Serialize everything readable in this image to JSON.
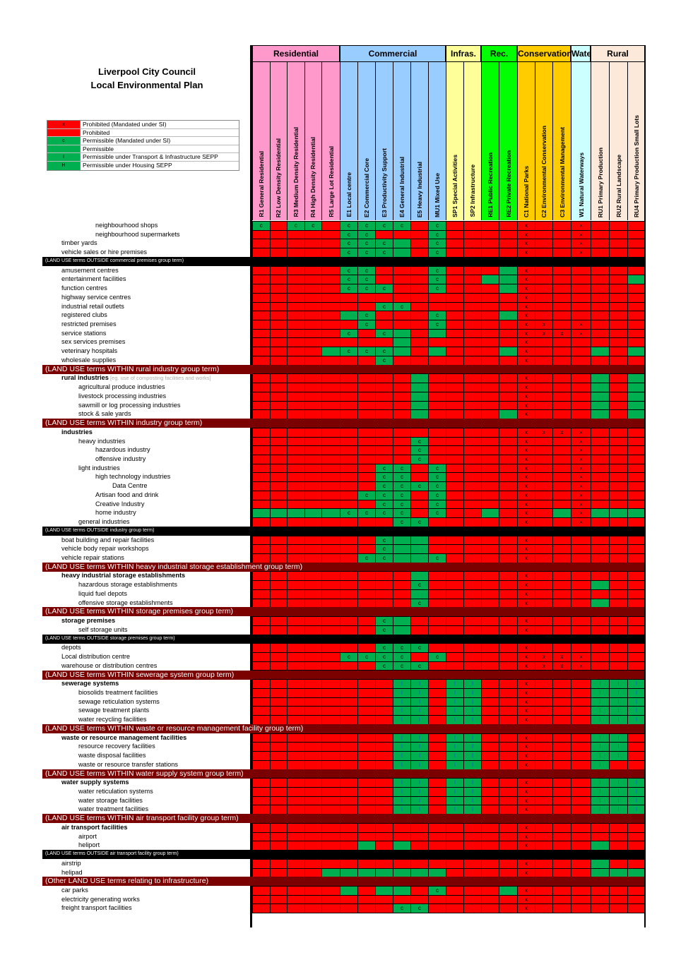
{
  "title": {
    "line1": "Liverpool City Council",
    "line2": "Local Environmental Plan"
  },
  "legend": [
    {
      "swatch_text": "x",
      "label": "Prohibited (Mandated under SI)",
      "color": "#ff0000"
    },
    {
      "swatch_text": "",
      "label": "Prohibited",
      "color": "#ff0000"
    },
    {
      "swatch_text": "c",
      "label": "Permissible (Mandated under SI)",
      "color": "#00b050"
    },
    {
      "swatch_text": "",
      "label": "Permissible",
      "color": "#00b050"
    },
    {
      "swatch_text": "I",
      "label": "Permissible under Transport & Infrastructure SEPP",
      "color": "#00b050"
    },
    {
      "swatch_text": "H",
      "label": "Permissible under Housing SEPP",
      "color": "#00b050"
    }
  ],
  "zone_groups": [
    {
      "name": "Residential",
      "color": "#ff99cc",
      "span": 5
    },
    {
      "name": "Commercial",
      "color": "#99ccff",
      "span": 6
    },
    {
      "name": "Infras.",
      "color": "#ffff99",
      "span": 2
    },
    {
      "name": "Rec.",
      "color": "#00ff00",
      "span": 2
    },
    {
      "name": "Conservation",
      "color": "#ffcc00",
      "span": 3
    },
    {
      "name": "Wate",
      "color": "#ccffff",
      "span": 1
    },
    {
      "name": "Rural",
      "color": "#fde9d9",
      "span": 3
    }
  ],
  "zones": [
    "R1 General Residential",
    "R2 Low Density Residential",
    "R3 Medium Density Residential",
    "R4 High Density Residential",
    "R5 Large Lot Residential",
    "E1 Local centre",
    "E2 Commercial Core",
    "E3 Productivity Support",
    "E4 General Industrial",
    "E5 Heavy Industrial",
    "MU1 Mixed Use",
    "SP1 Special Activities",
    "SP2 Infrastructure",
    "RE1 Public Recreation",
    "RE2 Private Recreation",
    "C1 National Parks",
    "C2 Environmental Conservation",
    "C3 Environmental Management",
    "W1 Natural Waterways",
    "RU1 Primary Production",
    "RU2 Rural Landscape",
    "RU4 Primary Production Small Lots"
  ],
  "rows": [
    {
      "type": "use",
      "label": "neighbourhood shops",
      "indent": 3,
      "cells": "c.G|R|c.G|c.G|R|c.G|c.G|c.G|c.G|R|c.G|R|R|R|R|x.R|R|R|x.R|R|R|R"
    },
    {
      "type": "use",
      "label": "neighbourhood supermarkets",
      "indent": 3,
      "cells": "R|R|R|R|R|c.G|c.G|R|R|R|c.G|R|R|R|R|x.R|R|R|x.R|R|R|R"
    },
    {
      "type": "use",
      "label": "timber yards",
      "indent": 1,
      "cells": "R|R|R|R|R|c.G|c.G|c.G|G|R|c.G|R|R|R|R|x.R|R|R|x.R|R|R|R"
    },
    {
      "type": "use",
      "label": "vehicle sales or hire premises",
      "indent": 1,
      "cells": "R|R|R|R|R|c.G|c.G|c.G|G|R|c.G|R|R|R|R|x.R|R|R|x.R|R|R|R"
    },
    {
      "type": "band-small",
      "label": "(LAND USE terms OUTSIDE commercial premises group term)"
    },
    {
      "type": "use",
      "label": "amusement centres",
      "indent": 1,
      "cells": "R|R|R|R|R|c.G|c.G|R|R|R|c.G|R|R|R|G|x.R|R|R|R|R|R|R"
    },
    {
      "type": "use",
      "label": "entertainment facilities",
      "indent": 1,
      "cells": "R|R|R|R|R|c.G|c.G|R|R|R|c.G|R|R|G|G|x.R|R|R|R|R|R|G"
    },
    {
      "type": "use",
      "label": "function centres",
      "indent": 1,
      "cells": "R|R|R|R|R|c.G|c.G|c.G|R|R|c.G|R|R|R|G|x.R|R|R|R|R|R|R"
    },
    {
      "type": "use",
      "label": "highway service centres",
      "indent": 1,
      "cells": "R|R|R|R|R|R|R|R|R|R|R|R|R|R|R|x.R|R|R|R|R|R|R"
    },
    {
      "type": "use",
      "label": "industrial retail outlets",
      "indent": 1,
      "cells": "R|R|R|R|R|R|R|c.G|c.G|R|R|R|R|R|R|x.R|R|R|R|R|R|R"
    },
    {
      "type": "use",
      "label": "registered clubs",
      "indent": 1,
      "cells": "R|R|R|R|R|G|c.G|R|R|R|c.G|R|R|R|G|x.R|R|R|R|R|R|R"
    },
    {
      "type": "use",
      "label": "restricted premises",
      "indent": 1,
      "cells": "R|R|R|R|R|R|c.G|R|R|R|c.G|R|R|R|R|x.R|x.R|R|x.R|R|R|R"
    },
    {
      "type": "use",
      "label": "service stations",
      "indent": 1,
      "cells": "R|R|R|R|R|c.G|R|c.G|G|R|G|R|R|R|R|x.R|x.R|x.R|x.R|R|R|R"
    },
    {
      "type": "use",
      "label": "sex services premises",
      "indent": 1,
      "cells": "R|R|R|R|R|R|R|R|G|R|R|R|R|R|R|x.R|R|R|R|R|R|R"
    },
    {
      "type": "use",
      "label": "veterinary hospitals",
      "indent": 1,
      "cells": "R|R|R|R|G|c.G|c.G|c.G|G|R|G|R|R|R|G|x.R|R|R|R|G|R|G"
    },
    {
      "type": "use",
      "label": "wholesale supplies",
      "indent": 1,
      "cells": "R|R|R|R|R|R|R|c.G|R|R|R|R|R|R|R|x.R|R|R|R|R|R|R"
    },
    {
      "type": "band-big",
      "label": "(LAND USE terms WITHIN rural industry group term)"
    },
    {
      "type": "use",
      "label": "rural industries",
      "hint": "[eg. use of composting facilities and works]",
      "indent": 1,
      "bold": true,
      "cells": "R|R|R|R|R|R|R|R|R|G|R|R|R|R|R|x.R|R|R|R|G|R|G"
    },
    {
      "type": "use",
      "label": "agricultural produce industries",
      "indent": 2,
      "cells": "R|R|R|R|R|R|R|R|R|G|R|R|R|R|R|x.R|R|R|R|G|R|G"
    },
    {
      "type": "use",
      "label": "livestock processing industries",
      "indent": 2,
      "cells": "R|R|R|R|R|R|R|R|R|G|R|R|R|R|R|x.R|R|R|R|G|R|G"
    },
    {
      "type": "use",
      "label": "sawmill or log processing industries",
      "indent": 2,
      "cells": "R|R|R|R|R|R|R|R|R|G|R|R|R|R|R|x.R|R|R|R|G|R|G"
    },
    {
      "type": "use",
      "label": "stock & sale yards",
      "indent": 2,
      "cells": "R|R|R|R|R|R|R|R|R|G|R|R|R|R|G|x.R|R|R|R|G|R|G"
    },
    {
      "type": "band-big",
      "label": "(LAND USE terms WITHIN industry group term)"
    },
    {
      "type": "use",
      "label": "industries",
      "indent": 1,
      "bold": true,
      "cells": "R|R|R|R|R|R|R|R|R|R|R|R|R|R|R|x.R|x.R|x.R|x.R|R|R|R"
    },
    {
      "type": "use",
      "label": "heavy industries",
      "indent": 2,
      "cells": "R|R|R|R|R|R|R|R|R|c.G|R|R|R|R|R|x.R|R|R|x.R|R|R|R"
    },
    {
      "type": "use",
      "label": "hazardous industry",
      "indent": 3,
      "cells": "R|R|R|R|R|R|R|R|R|c.G|R|R|R|R|R|x.R|R|R|x.R|R|R|R"
    },
    {
      "type": "use",
      "label": "offensive industry",
      "indent": 3,
      "cells": "R|R|R|R|R|R|R|R|R|c.G|R|R|R|R|R|x.R|R|R|x.R|R|R|R"
    },
    {
      "type": "use",
      "label": "light industries",
      "indent": 2,
      "cells": "R|R|R|R|R|R|R|c.G|c.G|R|c.G|R|R|R|R|x.R|R|R|x.R|R|R|R"
    },
    {
      "type": "use",
      "label": "high technology industries",
      "indent": 3,
      "cells": "R|R|R|R|R|R|R|c.G|c.G|R|c.G|R|R|R|R|x.R|R|R|x.R|R|R|R"
    },
    {
      "type": "use",
      "label": "Data Centre",
      "indent": 4,
      "cells": "R|R|R|R|R|R|R|c.G|c.G|c.G|c.G|R|R|R|R|x.R|R|R|x.R|R|R|R"
    },
    {
      "type": "use",
      "label": "Artisan food and drink",
      "indent": 3,
      "cells": "R|R|R|R|R|R|c.G|c.G|c.G|R|c.G|R|R|R|R|x.R|R|R|x.R|R|R|R"
    },
    {
      "type": "use",
      "label": "Creative Industry",
      "indent": 3,
      "cells": "R|R|R|R|R|R|R|c.G|c.G|R|c.G|R|R|R|R|x.R|R|R|x.R|R|R|R"
    },
    {
      "type": "use",
      "label": "home industry",
      "indent": 3,
      "cells": "G|G|G|G|G|c.G|c.G|c.G|c.G|R|c.G|R|R|G|R|x.R|R|G|x.R|G|G|G"
    },
    {
      "type": "use",
      "label": "general industries",
      "indent": 2,
      "cells": "R|R|R|R|R|R|R|R|c.G|c.G|R|R|R|R|R|x.R|R|R|x.R|R|R|R"
    },
    {
      "type": "band-small",
      "label": "(LAND USE terms OUTSIDE industry group term)"
    },
    {
      "type": "use",
      "label": "boat building and repair facilities",
      "indent": 1,
      "cells": "R|R|R|R|R|R|R|c.G|G|G|R|R|R|R|R|x.R|R|R|R|R|R|R"
    },
    {
      "type": "use",
      "label": "vehicle body repair workshops",
      "indent": 1,
      "cells": "R|R|R|R|R|R|R|c.G|G|G|R|R|R|R|R|x.R|R|R|R|R|R|R"
    },
    {
      "type": "use",
      "label": "vehicle repair stations",
      "indent": 1,
      "cells": "R|R|R|R|R|R|c.G|c.G|G|G|c.G|R|R|R|R|x.R|R|R|R|R|R|R"
    },
    {
      "type": "band-big",
      "label": "(LAND USE terms WITHIN heavy industrial storage establishment group term)"
    },
    {
      "type": "use",
      "label": "heavy industrial storage establishments",
      "indent": 1,
      "bold": true,
      "cells": "R|R|R|R|R|R|R|R|R|G|R|R|R|R|R|x.R|R|R|R|R|R|R"
    },
    {
      "type": "use",
      "label": "hazardous storage establishments",
      "indent": 2,
      "cells": "R|R|R|R|R|R|R|R|R|c.G|R|R|R|R|R|x.R|R|R|R|G|R|R"
    },
    {
      "type": "use",
      "label": "liquid fuel depots",
      "indent": 2,
      "cells": "R|R|R|R|R|R|R|R|R|G|R|R|R|R|R|x.R|R|R|R|R|R|R"
    },
    {
      "type": "use",
      "label": "offensive storage establishments",
      "indent": 2,
      "cells": "R|R|R|R|R|R|R|R|R|c.G|R|R|R|R|R|x.R|R|R|R|G|R|R"
    },
    {
      "type": "band-big",
      "label": "(LAND USE terms WITHIN storage premises group term)"
    },
    {
      "type": "use",
      "label": "storage premises",
      "indent": 1,
      "bold": true,
      "cells": "R|R|R|R|R|R|R|c.G|G|R|R|R|R|R|R|x.R|R|R|R|R|R|R"
    },
    {
      "type": "use",
      "label": "self storage units",
      "indent": 2,
      "cells": "R|R|R|R|R|R|R|c.G|G|R|R|R|R|R|R|x.R|R|R|R|R|R|R"
    },
    {
      "type": "band-small",
      "label": "(LAND USE terms OUTSIDE storage premises group term)"
    },
    {
      "type": "use",
      "label": "depots",
      "indent": 1,
      "cells": "R|R|R|R|R|R|R|c.G|c.G|c.G|R|R|R|R|R|x.R|R|R|R|R|R|R"
    },
    {
      "type": "use",
      "label": "Local distribution centre",
      "indent": 1,
      "cells": "R|R|R|R|R|c.G|c.G|c.G|c.G|R|c.G|R|R|R|R|x.R|x.R|x.R|x.R|R|R|R"
    },
    {
      "type": "use",
      "label": "warehouse or distribution centres",
      "indent": 1,
      "cells": "R|R|R|R|R|R|R|c.G|c.G|c.G|R|R|R|R|R|x.R|x.R|x.R|x.R|R|R|R"
    },
    {
      "type": "band-big",
      "label": "(LAND USE terms WITHIN sewerage system group term)"
    },
    {
      "type": "use",
      "label": "sewerage systems",
      "indent": 1,
      "bold": true,
      "cells": "R|R|R|R|R|R|R|R|I.G|I.G|R|I.G|I.G|R|R|x.R|R|R|R|I.G|I.G|I.G"
    },
    {
      "type": "use",
      "label": "biosolids treatment facilities",
      "indent": 2,
      "cells": "R|R|R|R|R|R|R|R|I.G|I.G|R|I.G|I.G|R|R|x.R|R|R|R|I.G|I.G|I.G"
    },
    {
      "type": "use",
      "label": "sewage reticulation systems",
      "indent": 2,
      "cells": "R|R|R|R|R|R|R|R|I.G|I.G|R|I.G|I.G|R|R|x.R|R|R|R|I.G|I.G|I.G"
    },
    {
      "type": "use",
      "label": "sewage treatment plants",
      "indent": 2,
      "cells": "R|R|R|R|R|R|R|R|I.G|I.G|R|I.G|I.G|R|R|x.R|R|R|R|I.G|I.G|I.G"
    },
    {
      "type": "use",
      "label": "water recycling facilities",
      "indent": 2,
      "cells": "R|R|R|R|R|R|R|R|I.G|I.G|R|I.G|I.G|R|R|x.R|R|R|R|I.G|I.G|I.G"
    },
    {
      "type": "band-big",
      "label": "(LAND USE terms WITHIN waste or resource management facility group term)"
    },
    {
      "type": "use",
      "label": "waste or resource management facilities",
      "indent": 1,
      "bold": true,
      "cells": "R|R|R|R|R|R|R|R|I.G|I.G|R|I.G|I.G|R|R|x.R|R|R|R|I.G|I.G|R"
    },
    {
      "type": "use",
      "label": "resource recovery facilities",
      "indent": 2,
      "cells": "R|R|R|R|R|R|R|R|I.G|I.G|R|I.G|I.G|R|R|x.R|R|R|R|I.G|I.G|R"
    },
    {
      "type": "use",
      "label": "waste disposal facilities",
      "indent": 2,
      "cells": "R|R|R|R|R|R|R|R|I.G|I.G|R|I.G|I.G|R|R|x.R|R|R|R|I.G|I.G|R"
    },
    {
      "type": "use",
      "label": "waste or resource transfer stations",
      "indent": 2,
      "cells": "R|R|R|R|R|R|R|R|I.G|I.G|R|I.G|I.G|R|R|x.R|R|R|R|I.G|R|R"
    },
    {
      "type": "band-big",
      "label": "(LAND USE terms WITHIN water supply system group term)"
    },
    {
      "type": "use",
      "label": "water supply systems",
      "indent": 1,
      "bold": true,
      "cells": "R|R|R|R|R|R|R|R|I.G|I.G|R|I.G|I.G|R|R|x.R|R|R|R|I.G|I.G|I.G"
    },
    {
      "type": "use",
      "label": "water reticulation systems",
      "indent": 2,
      "cells": "R|R|R|R|R|R|R|R|I.G|I.G|R|I.G|I.G|R|R|x.R|R|R|R|I.G|I.G|I.G"
    },
    {
      "type": "use",
      "label": "water storage facilities",
      "indent": 2,
      "cells": "R|R|R|R|R|R|R|R|I.G|I.G|R|I.G|I.G|R|R|x.R|R|R|R|I.G|I.G|I.G"
    },
    {
      "type": "use",
      "label": "water treatment facilities",
      "indent": 2,
      "cells": "R|R|R|R|R|R|R|R|I.G|I.G|R|I.G|I.G|R|R|x.R|R|R|R|I.G|I.G|I.G"
    },
    {
      "type": "band-big",
      "label": "(LAND USE terms WITHIN air transport facility group term)"
    },
    {
      "type": "use",
      "label": "air transport facilities",
      "indent": 1,
      "bold": true,
      "cells": "R|R|R|R|R|R|R|R|R|R|R|R|R|R|R|x.R|R|R|R|R|R|R"
    },
    {
      "type": "use",
      "label": "airport",
      "indent": 2,
      "cells": "R|R|R|R|R|R|R|R|R|R|R|R|R|R|R|x.R|R|R|R|R|R|R"
    },
    {
      "type": "use",
      "label": "heliport",
      "indent": 2,
      "cells": "R|R|R|R|R|R|G|R|G|R|R|R|R|R|R|x.R|R|R|R|G|R|R"
    },
    {
      "type": "band-small",
      "label": "(LAND USE terms OUTSIDE air transport facility group term)"
    },
    {
      "type": "use",
      "label": "airstrip",
      "indent": 1,
      "cells": "R|R|R|R|R|R|R|R|R|R|R|R|R|R|R|x.R|R|R|R|G|R|R"
    },
    {
      "type": "use",
      "label": "helipad",
      "indent": 1,
      "cells": "R|R|R|R|G|G|G|G|G|G|G|R|R|R|R|x.R|R|R|R|G|G|G"
    },
    {
      "type": "band-big",
      "label": "(Other LAND USE terms relating to infrastructure)"
    },
    {
      "type": "use",
      "label": "car parks",
      "indent": 1,
      "cells": "R|R|R|R|R|G|R|G|G|R|c.G|R|R|R|G|x.R|R|R|R|R|R|R"
    },
    {
      "type": "use",
      "label": "electricity generating works",
      "indent": 1,
      "cells": "R|R|R|R|R|R|R|R|R|R|R|R|R|R|R|x.R|R|R|R|R|R|R"
    },
    {
      "type": "use",
      "label": "freight transport facilities",
      "indent": 1,
      "cells": "R|R|R|R|R|R|R|R|c.G|c.G|R|R|R|R|R|x.R|R|R|R|R|R|R"
    }
  ]
}
